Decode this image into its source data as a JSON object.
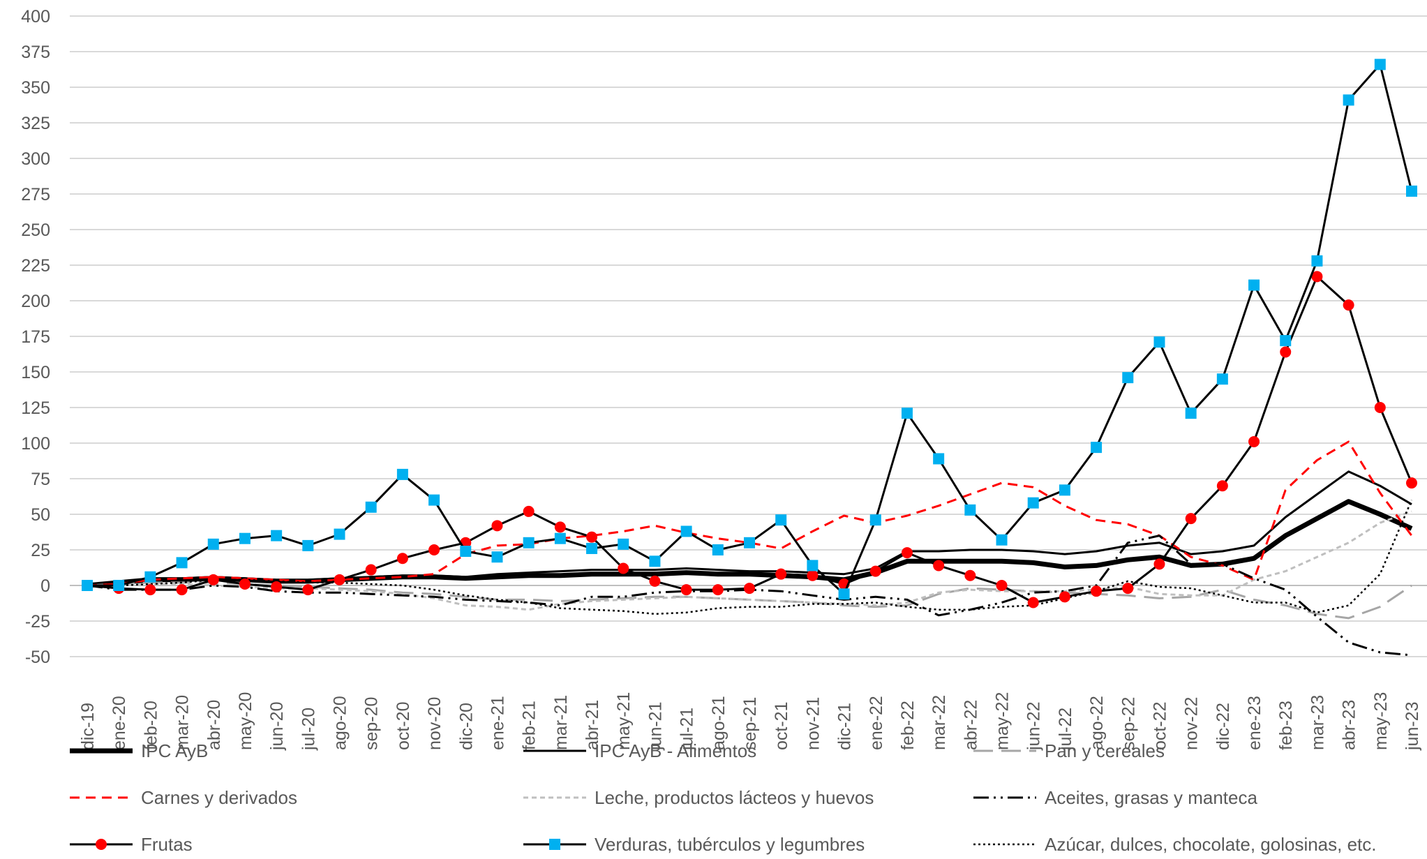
{
  "chart_data": {
    "type": "line",
    "title": "",
    "xlabel": "",
    "ylabel": "",
    "ylim": [
      -50,
      400
    ],
    "yticks": [
      -50,
      -25,
      0,
      25,
      50,
      75,
      100,
      125,
      150,
      175,
      200,
      225,
      250,
      275,
      300,
      325,
      350,
      375,
      400
    ],
    "grid": true,
    "legend_position": "bottom",
    "categories": [
      "dic-19",
      "ene-20",
      "feb-20",
      "mar-20",
      "abr-20",
      "may-20",
      "jun-20",
      "jul-20",
      "ago-20",
      "sep-20",
      "oct-20",
      "nov-20",
      "dic-20",
      "ene-21",
      "feb-21",
      "mar-21",
      "abr-21",
      "may-21",
      "jun-21",
      "jul-21",
      "ago-21",
      "sep-21",
      "oct-21",
      "nov-21",
      "dic-21",
      "ene-22",
      "feb-22",
      "mar-22",
      "abr-22",
      "may-22",
      "jun-22",
      "jul-22",
      "ago-22",
      "sep-22",
      "oct-22",
      "nov-22",
      "dic-22",
      "ene-23",
      "feb-23",
      "mar-23",
      "abr-23",
      "may-23",
      "jun-23"
    ],
    "series": [
      {
        "name": "IPC AyB",
        "color": "#000000",
        "style": "thick",
        "values": [
          0,
          2,
          4,
          4,
          5,
          4,
          3,
          3,
          4,
          5,
          6,
          6,
          5,
          6,
          7,
          7,
          8,
          8,
          8,
          9,
          8,
          8,
          7,
          6,
          4,
          9,
          17,
          17,
          17,
          17,
          16,
          13,
          14,
          18,
          20,
          14,
          15,
          19,
          35,
          47,
          59,
          50,
          40
        ]
      },
      {
        "name": "IPC AyB - Alimentos",
        "color": "#000000",
        "style": "solid",
        "values": [
          0,
          2,
          5,
          5,
          6,
          5,
          4,
          4,
          5,
          6,
          7,
          7,
          6,
          8,
          9,
          10,
          11,
          11,
          11,
          12,
          11,
          10,
          10,
          9,
          8,
          12,
          24,
          24,
          25,
          25,
          24,
          22,
          24,
          28,
          30,
          22,
          24,
          28,
          48,
          64,
          80,
          70,
          57
        ]
      },
      {
        "name": "Pan y cereales",
        "color": "#a6a6a6",
        "style": "longdash",
        "values": [
          0,
          1,
          2,
          2,
          2,
          1,
          0,
          -1,
          -2,
          -3,
          -5,
          -6,
          -8,
          -10,
          -10,
          -11,
          -10,
          -9,
          -8,
          -8,
          -9,
          -10,
          -11,
          -12,
          -14,
          -15,
          -14,
          -6,
          -2,
          -3,
          -4,
          -5,
          -6,
          -7,
          -9,
          -8,
          -3,
          -10,
          -14,
          -20,
          -23,
          -15,
          0
        ]
      },
      {
        "name": "Carnes y derivados",
        "color": "#ff0000",
        "style": "dash",
        "values": [
          0,
          1,
          4,
          5,
          6,
          5,
          4,
          3,
          4,
          5,
          6,
          8,
          22,
          28,
          29,
          33,
          35,
          38,
          42,
          37,
          33,
          30,
          26,
          38,
          49,
          44,
          49,
          56,
          64,
          72,
          69,
          56,
          46,
          43,
          35,
          20,
          14,
          4,
          67,
          88,
          101,
          65,
          35
        ]
      },
      {
        "name": "Leche, productos lácteos y huevos",
        "color": "#bfbfbf",
        "style": "shortdash",
        "values": [
          0,
          0,
          1,
          1,
          0,
          -1,
          -2,
          -2,
          -3,
          -4,
          -6,
          -9,
          -14,
          -15,
          -17,
          -13,
          -11,
          -10,
          -9,
          -8,
          -9,
          -10,
          -11,
          -12,
          -13,
          -14,
          -12,
          -5,
          -3,
          -4,
          -4,
          -4,
          -3,
          -1,
          -6,
          -7,
          -7,
          4,
          10,
          20,
          30,
          44,
          52
        ]
      },
      {
        "name": "Aceites, grasas y manteca",
        "color": "#000000",
        "style": "dashdotdot",
        "values": [
          0,
          -3,
          -3,
          -3,
          0,
          -1,
          -4,
          -5,
          -5,
          -6,
          -7,
          -8,
          -10,
          -11,
          -12,
          -14,
          -8,
          -8,
          -5,
          -4,
          -4,
          -3,
          -4,
          -7,
          -10,
          -8,
          -10,
          -21,
          -17,
          -12,
          -5,
          -4,
          0,
          30,
          35,
          15,
          15,
          5,
          -3,
          -22,
          -40,
          -47,
          -49
        ]
      },
      {
        "name": "Frutas",
        "color": "#000000",
        "marker": "circle",
        "marker_color": "#ff0000",
        "style": "solid",
        "values": [
          0,
          -2,
          -3,
          -3,
          4,
          1,
          -1,
          -3,
          4,
          11,
          19,
          25,
          30,
          42,
          52,
          41,
          34,
          12,
          3,
          -3,
          -3,
          -2,
          8,
          7,
          1,
          10,
          23,
          14,
          7,
          0,
          -12,
          -8,
          -4,
          -2,
          15,
          47,
          70,
          101,
          164,
          217,
          197,
          125,
          72
        ]
      },
      {
        "name": "Verduras, tubérculos y legumbres",
        "color": "#000000",
        "marker": "square",
        "marker_color": "#00b0f0",
        "style": "solid",
        "values": [
          0,
          0,
          6,
          16,
          29,
          33,
          35,
          28,
          36,
          55,
          78,
          60,
          24,
          20,
          30,
          33,
          26,
          29,
          17,
          38,
          25,
          30,
          46,
          14,
          -6,
          46,
          121,
          89,
          53,
          32,
          58,
          67,
          97,
          146,
          171,
          121,
          145,
          211,
          172,
          228,
          341,
          366,
          277
        ]
      },
      {
        "name": "Azúcar, dulces, chocolate, golosinas, etc.",
        "color": "#000000",
        "style": "dotted",
        "values": [
          0,
          0,
          1,
          2,
          4,
          4,
          3,
          2,
          2,
          1,
          0,
          -3,
          -7,
          -10,
          -12,
          -16,
          -17,
          -18,
          -20,
          -19,
          -16,
          -15,
          -15,
          -13,
          -13,
          -12,
          -15,
          -17,
          -17,
          -15,
          -14,
          -9,
          -4,
          3,
          -1,
          -2,
          -7,
          -12,
          -12,
          -19,
          -14,
          8,
          60
        ]
      }
    ]
  }
}
